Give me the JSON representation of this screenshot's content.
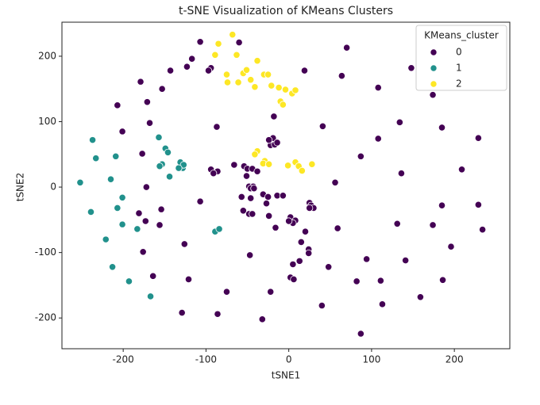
{
  "chart_data": {
    "type": "scatter",
    "title": "t-SNE Visualization of KMeans Clusters",
    "x_label": "tSNE1",
    "y_label": "tSNE2",
    "legend_title": "KMeans_cluster",
    "legend": "upper right",
    "xlim": [
      -274,
      267
    ],
    "ylim": [
      -247,
      252
    ],
    "xticks": [
      -200,
      -100,
      0,
      100,
      200
    ],
    "yticks": [
      -200,
      -100,
      0,
      100,
      200
    ],
    "series": [
      {
        "name": "0",
        "color": "#440154",
        "x": [
          -107,
          -60,
          -117,
          -123,
          -143,
          -94,
          -97,
          -179,
          -153,
          -171,
          -207,
          -201,
          -168,
          -177,
          -87,
          -172,
          -107,
          -154,
          -181,
          -173,
          -156,
          -176,
          -126,
          -164,
          -121,
          -129,
          -75,
          -86,
          -32,
          -22,
          -47,
          2,
          6,
          13,
          20,
          15,
          24,
          24,
          40,
          48,
          59,
          82,
          94,
          87,
          113,
          111,
          131,
          141,
          159,
          174,
          186,
          196,
          185,
          229,
          234,
          209,
          229,
          185,
          174,
          148,
          134,
          108,
          108,
          87,
          41,
          70,
          64,
          19,
          136,
          56,
          -18,
          -19,
          -22,
          -17,
          -14,
          -24,
          -66,
          -94,
          -86,
          -91,
          -54,
          -50,
          -44,
          -38,
          -51,
          -48,
          -43,
          -46,
          -42,
          -57,
          -46,
          -31,
          -25,
          -14,
          -7,
          -27,
          -55,
          -48,
          -44,
          -24,
          -16,
          2,
          8,
          5,
          0,
          25,
          27,
          30,
          25,
          5
        ],
        "values": [
          222,
          221,
          196,
          184,
          178,
          182,
          178,
          161,
          150,
          130,
          125,
          85,
          98,
          51,
          92,
          0,
          -22,
          -34,
          -40,
          -52,
          -58,
          -99,
          -87,
          -136,
          -141,
          -192,
          -160,
          -194,
          -202,
          -160,
          -104,
          -138,
          -141,
          -113,
          -68,
          -84,
          -95,
          -101,
          -181,
          -122,
          -63,
          -144,
          -110,
          -224,
          -179,
          -143,
          -56,
          -112,
          -168,
          -58,
          -142,
          -91,
          -28,
          -27,
          -65,
          27,
          75,
          91,
          141,
          182,
          99,
          152,
          74,
          47,
          93,
          213,
          170,
          178,
          21,
          7,
          108,
          75,
          64,
          65,
          68,
          72,
          34,
          27,
          24,
          21,
          32,
          28,
          28,
          24,
          17,
          1,
          1,
          -2,
          -2,
          -15,
          -17,
          -11,
          -15,
          -13,
          -13,
          -25,
          -36,
          -41,
          -41,
          -44,
          -62,
          -46,
          -51,
          -55,
          -52,
          -24,
          -28,
          -32,
          -32,
          -118
        ]
      },
      {
        "name": "1",
        "color": "#21918c",
        "x": [
          -252,
          -237,
          -233,
          -239,
          -209,
          -215,
          -201,
          -207,
          -221,
          -213,
          -193,
          -201,
          -183,
          -167,
          -157,
          -149,
          -146,
          -153,
          -156,
          -144,
          -131,
          -128,
          -127,
          -133,
          -89,
          -84
        ],
        "values": [
          7,
          72,
          44,
          -38,
          47,
          12,
          -16,
          -32,
          -80,
          -122,
          -144,
          -57,
          -64,
          -167,
          76,
          59,
          53,
          35,
          32,
          16,
          38,
          29,
          34,
          29,
          -68,
          -64
        ]
      },
      {
        "name": "2",
        "color": "#fde725",
        "x": [
          -68,
          -85,
          -89,
          -63,
          -75,
          -74,
          -55,
          -51,
          -61,
          -46,
          -38,
          -41,
          -30,
          -25,
          -21,
          -12,
          -10,
          -7,
          -4,
          4,
          8,
          -38,
          -41,
          -29,
          -31,
          -24,
          -1,
          8,
          12,
          16,
          28
        ],
        "values": [
          233,
          219,
          202,
          202,
          172,
          160,
          174,
          179,
          160,
          164,
          193,
          153,
          172,
          172,
          155,
          152,
          131,
          126,
          149,
          143,
          148,
          55,
          50,
          40,
          36,
          35,
          33,
          38,
          32,
          25,
          35
        ]
      }
    ]
  }
}
